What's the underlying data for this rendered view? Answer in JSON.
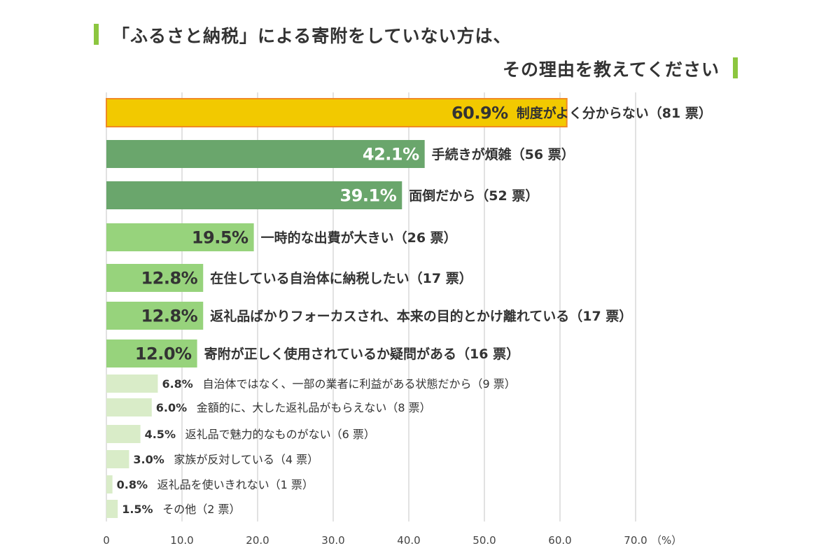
{
  "title": {
    "line1": "「ふるさと納税」による寄附をしていない方は、",
    "line2": "その理由を教えてください"
  },
  "colors": {
    "highlight": "#f2c900",
    "highlight_border": "#f08a24",
    "dark_green": "#6aa66c",
    "mid_green": "#97d37c",
    "light_green": "#d9ecc8",
    "title_accent": "#8cc63f",
    "grid": "#d9d9d9"
  },
  "chart_data": {
    "type": "bar",
    "orientation": "horizontal",
    "unit_label": "（%）",
    "xlim": [
      0,
      70
    ],
    "xticks": [
      "0",
      "10.0",
      "20.0",
      "30.0",
      "40.0",
      "50.0",
      "60.0",
      "70.0"
    ],
    "tick_values": [
      0,
      10,
      20,
      30,
      40,
      50,
      60,
      70
    ],
    "grid": true,
    "bars": [
      {
        "label": "制度がよく分からない（81 票）",
        "value": 60.9,
        "value_label": "60.9%",
        "tier": "highlight"
      },
      {
        "label": "手続きが煩雑（56 票）",
        "value": 42.1,
        "value_label": "42.1%",
        "tier": "dark"
      },
      {
        "label": "面倒だから（52 票）",
        "value": 39.1,
        "value_label": "39.1%",
        "tier": "dark"
      },
      {
        "label": "一時的な出費が大きい（26 票）",
        "value": 19.5,
        "value_label": "19.5%",
        "tier": "mid"
      },
      {
        "label": "在住している自治体に納税したい（17 票）",
        "value": 12.8,
        "value_label": "12.8%",
        "tier": "mid"
      },
      {
        "label": "返礼品ばかりフォーカスされ、本来の目的とかけ離れている（17 票）",
        "value": 12.8,
        "value_label": "12.8%",
        "tier": "mid"
      },
      {
        "label": "寄附が正しく使用されているか疑問がある（16 票）",
        "value": 12.0,
        "value_label": "12.0%",
        "tier": "mid"
      },
      {
        "label": "自治体ではなく、一部の業者に利益がある状態だから（9 票）",
        "value": 6.8,
        "value_label": "6.8%",
        "tier": "light"
      },
      {
        "label": "金額的に、大した返礼品がもらえない（8 票）",
        "value": 6.0,
        "value_label": "6.0%",
        "tier": "light"
      },
      {
        "label": "返礼品で魅力的なものがない（6 票）",
        "value": 4.5,
        "value_label": "4.5%",
        "tier": "light"
      },
      {
        "label": "家族が反対している（4 票）",
        "value": 3.0,
        "value_label": "3.0%",
        "tier": "light"
      },
      {
        "label": "返礼品を使いきれない（1 票）",
        "value": 0.8,
        "value_label": "0.8%",
        "tier": "light"
      },
      {
        "label": "その他（2 票）",
        "value": 1.5,
        "value_label": "1.5%",
        "tier": "light"
      }
    ]
  }
}
